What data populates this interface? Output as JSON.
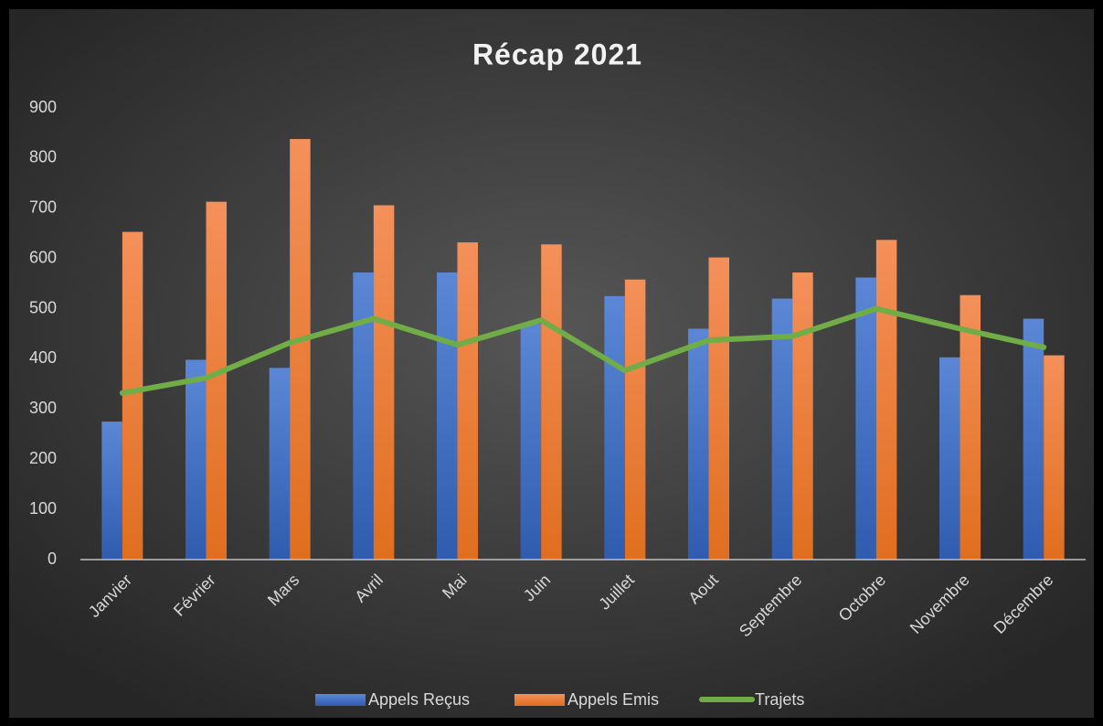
{
  "chart_data": {
    "type": "bar",
    "title": "Récap 2021",
    "categories": [
      "Janvier",
      "Février",
      "Mars",
      "Avril",
      "Mai",
      "Juin",
      "Juillet",
      "Aout",
      "Septembre",
      "Octobre",
      "Novembre",
      "Décembre"
    ],
    "series": [
      {
        "name": "Appels Reçus",
        "type": "bar",
        "color": "#4472c4",
        "values": [
          275,
          398,
          382,
          572,
          572,
          470,
          525,
          460,
          520,
          562,
          403,
          480
        ]
      },
      {
        "name": "Appels Emis",
        "type": "bar",
        "color": "#ed7d31",
        "values": [
          653,
          713,
          838,
          706,
          632,
          628,
          558,
          602,
          572,
          637,
          527,
          407
        ]
      },
      {
        "name": "Trajets",
        "type": "line",
        "color": "#70ad47",
        "values": [
          332,
          362,
          432,
          480,
          428,
          477,
          377,
          437,
          445,
          500,
          460,
          423
        ]
      }
    ],
    "ylim": [
      0,
      900
    ],
    "yticks": [
      0,
      100,
      200,
      300,
      400,
      500,
      600,
      700,
      800,
      900
    ],
    "grid": false,
    "legend": "bottom"
  }
}
